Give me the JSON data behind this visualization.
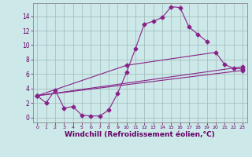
{
  "background_color": "#cce8e8",
  "grid_color": "#b0c4c4",
  "line_color": "#882288",
  "xlabel": "Windchill (Refroidissement éolien,°C)",
  "xlabel_fontsize": 6.5,
  "xticks": [
    0,
    1,
    2,
    3,
    4,
    5,
    6,
    7,
    8,
    9,
    10,
    11,
    12,
    13,
    14,
    15,
    16,
    17,
    18,
    19,
    20,
    21,
    22,
    23
  ],
  "yticks": [
    0,
    2,
    4,
    6,
    8,
    10,
    12,
    14
  ],
  "xlim": [
    -0.5,
    23.5
  ],
  "ylim": [
    -0.7,
    15.8
  ],
  "line1_x": [
    0,
    1,
    2,
    3,
    4,
    5,
    6,
    7,
    8,
    9,
    10,
    11,
    12,
    13,
    14,
    15,
    16,
    17,
    18,
    19
  ],
  "line1_y": [
    3.0,
    2.0,
    3.8,
    1.3,
    1.5,
    0.3,
    0.2,
    0.2,
    1.0,
    3.3,
    6.2,
    9.5,
    12.9,
    13.3,
    13.8,
    15.3,
    15.2,
    12.5,
    11.5,
    10.5
  ],
  "line2_x": [
    0,
    23
  ],
  "line2_y": [
    3.0,
    6.5
  ],
  "line3_x": [
    0,
    23
  ],
  "line3_y": [
    3.0,
    7.0
  ],
  "line4_x": [
    0,
    10,
    20,
    21,
    22,
    23
  ],
  "line4_y": [
    3.0,
    7.2,
    9.0,
    7.3,
    6.8,
    6.7
  ]
}
